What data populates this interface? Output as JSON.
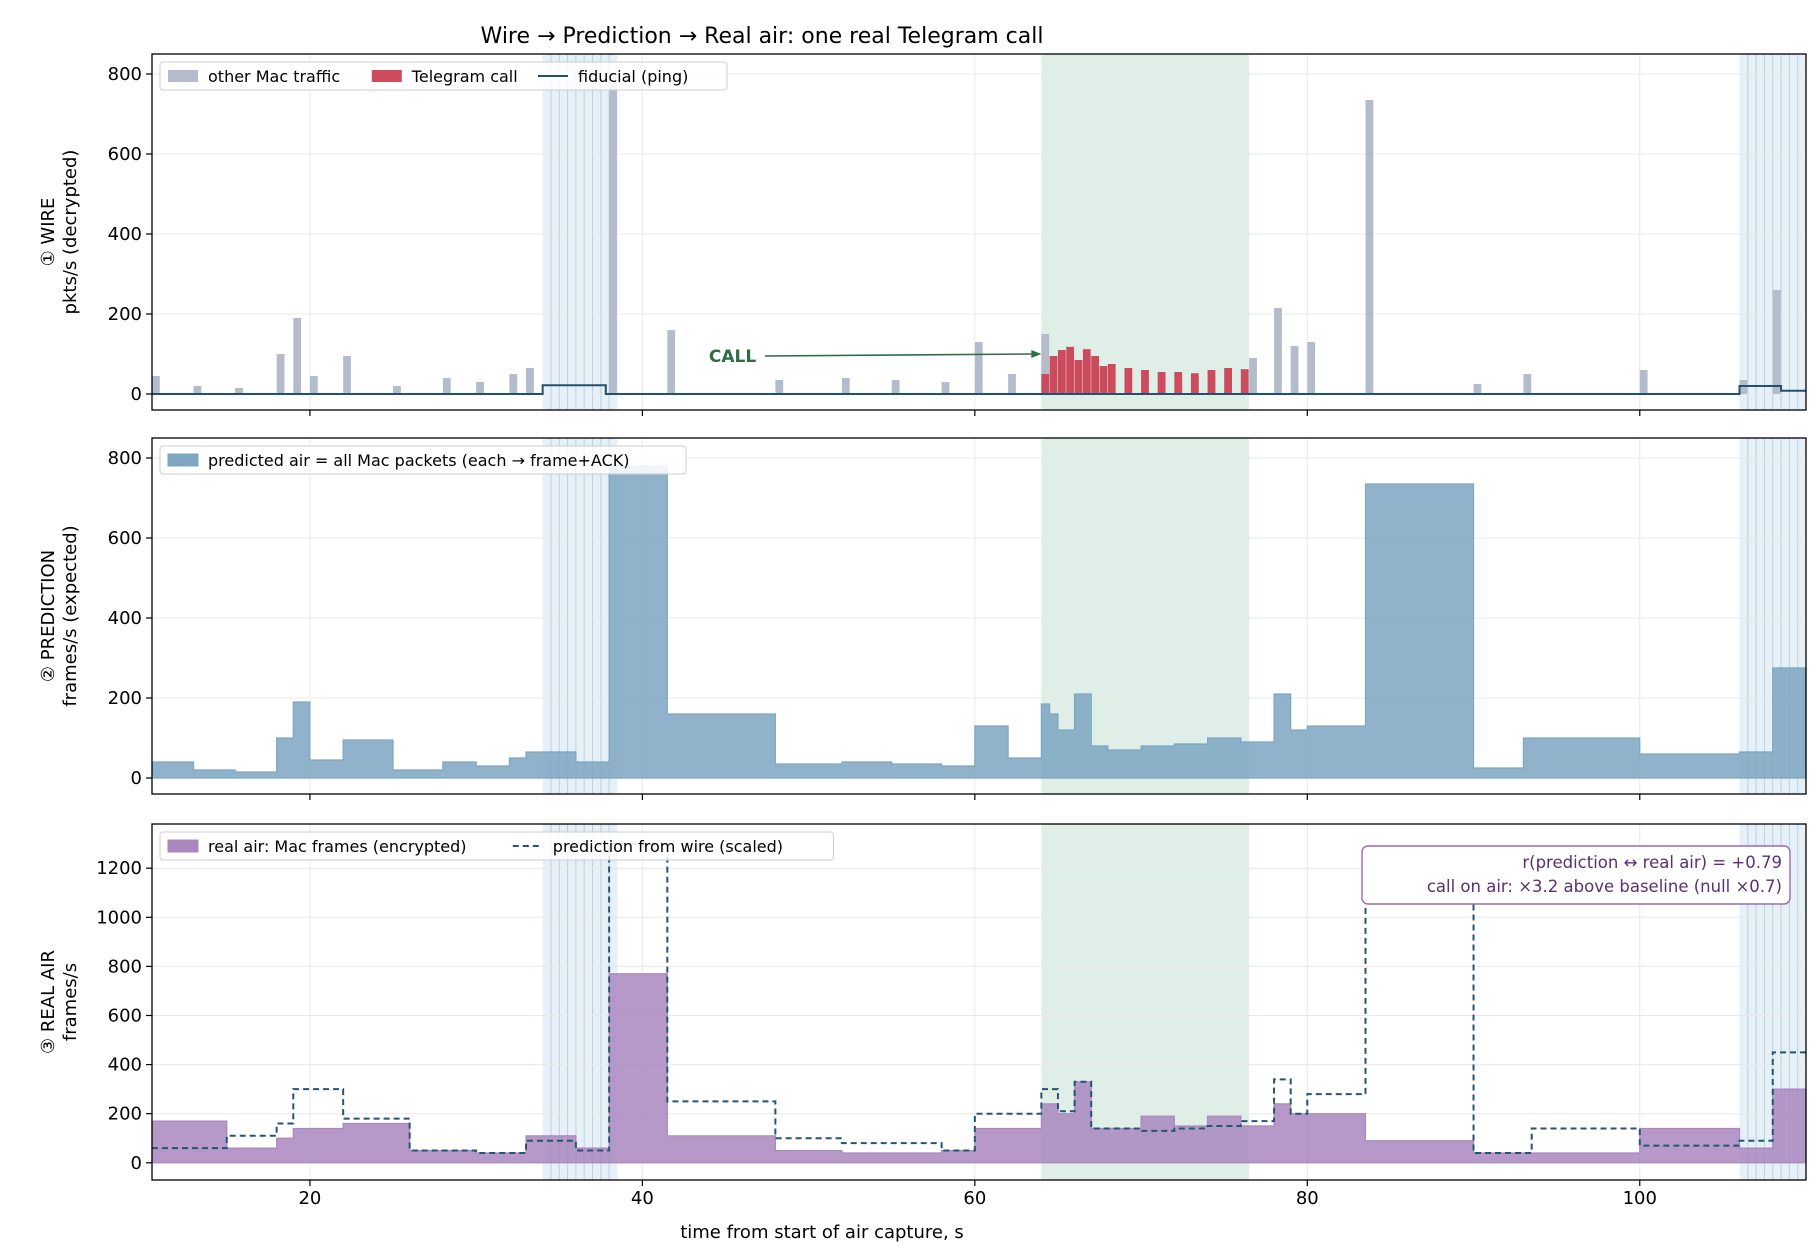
{
  "figure": {
    "title": "Wire → Prediction → Real air: one real Telegram call",
    "xlabel": "time from start of air capture, s"
  },
  "chart_data": [
    {
      "type": "bar",
      "panel": "wire",
      "ylabel_line1": "① WIRE",
      "ylabel_line2": "pkts/s (decrypted)",
      "xlim": [
        10.5,
        110.0
      ],
      "ylim": [
        -40,
        850
      ],
      "x_ticks": [
        20,
        40,
        60,
        80,
        100
      ],
      "y_ticks": [
        0,
        200,
        400,
        600,
        800
      ],
      "grid": true,
      "legend_position": "top-left",
      "bin_width_s": 0.5,
      "series": [
        {
          "name": "other Mac traffic",
          "kind": "bars",
          "color": "#b4bccb",
          "x": [
            10.5,
            13,
            15.5,
            18,
            19,
            20,
            22,
            25,
            28,
            30,
            32,
            33,
            38,
            41.5,
            48,
            52,
            55,
            58,
            60,
            62,
            64,
            76.5,
            78,
            79,
            80,
            83.5,
            90,
            93,
            100,
            106,
            108
          ],
          "values": [
            45,
            20,
            15,
            100,
            190,
            45,
            95,
            20,
            40,
            30,
            50,
            65,
            780,
            160,
            35,
            40,
            35,
            30,
            130,
            50,
            150,
            90,
            215,
            120,
            130,
            735,
            25,
            50,
            60,
            35,
            260
          ]
        },
        {
          "name": "Telegram call",
          "kind": "bars",
          "color": "#cc4c5e",
          "x": [
            64,
            64.5,
            65,
            65.5,
            66,
            66.5,
            67,
            67.5,
            68,
            69,
            70,
            71,
            72,
            73,
            74,
            75,
            76
          ],
          "values": [
            50,
            95,
            110,
            118,
            85,
            112,
            95,
            70,
            75,
            65,
            60,
            55,
            55,
            52,
            60,
            65,
            62
          ]
        },
        {
          "name": "fiducial (ping)",
          "kind": "step",
          "color": "#24506f",
          "x": [
            10.5,
            34,
            37.8,
            106,
            108.5,
            110
          ],
          "values": [
            0,
            22,
            0,
            20,
            8,
            8
          ]
        }
      ],
      "annotation": {
        "text": "CALL",
        "x": 44,
        "y": 95,
        "arrow_to": [
          64,
          100
        ]
      },
      "shaded_regions": [
        {
          "label": "call window",
          "x_start": 64,
          "x_end": 76.5,
          "color": "#dfeee6"
        },
        {
          "label": "fiducial",
          "x_start": 34,
          "x_end": 38.5,
          "color": "#e6f0f6"
        },
        {
          "label": "fiducial",
          "x_start": 106,
          "x_end": 110,
          "color": "#e6f0f6"
        }
      ]
    },
    {
      "type": "bar",
      "panel": "prediction",
      "ylabel_line1": "② PREDICTION",
      "ylabel_line2": "frames/s (expected)",
      "xlim": [
        10.5,
        110.0
      ],
      "ylim": [
        -40,
        850
      ],
      "x_ticks": [
        20,
        40,
        60,
        80,
        100
      ],
      "y_ticks": [
        0,
        200,
        400,
        600,
        800
      ],
      "grid": true,
      "legend_position": "top-left",
      "series": [
        {
          "name": "predicted air = all Mac packets (each → frame+ACK)",
          "kind": "step-filled",
          "color": "#7da6c2",
          "x": [
            10.5,
            13,
            15.5,
            18,
            19,
            20,
            22,
            25,
            28,
            30,
            32,
            33,
            36,
            38,
            41.5,
            48,
            52,
            55,
            58,
            60,
            62,
            64,
            64.5,
            65,
            66,
            67,
            68,
            70,
            72,
            74,
            76,
            78,
            79,
            80,
            83.5,
            90,
            93,
            100,
            106,
            108
          ],
          "values": [
            40,
            20,
            15,
            100,
            190,
            45,
            95,
            20,
            40,
            30,
            50,
            65,
            40,
            780,
            160,
            35,
            40,
            35,
            30,
            130,
            50,
            185,
            160,
            120,
            210,
            80,
            70,
            80,
            85,
            100,
            90,
            210,
            120,
            130,
            735,
            25,
            100,
            60,
            65,
            275
          ]
        }
      ],
      "shaded_regions": [
        {
          "label": "call window",
          "x_start": 64,
          "x_end": 76.5
        },
        {
          "label": "fiducial",
          "x_start": 34,
          "x_end": 38.5
        },
        {
          "label": "fiducial",
          "x_start": 106,
          "x_end": 110
        }
      ]
    },
    {
      "type": "bar",
      "panel": "real air",
      "ylabel_line1": "③ REAL AIR",
      "ylabel_line2": "frames/s",
      "xlim": [
        10.5,
        110.0
      ],
      "ylim": [
        -70,
        1380
      ],
      "x_ticks": [
        20,
        40,
        60,
        80,
        100
      ],
      "y_ticks": [
        0,
        200,
        400,
        600,
        800,
        1000,
        1200
      ],
      "grid": true,
      "legend_position": "top-left",
      "series": [
        {
          "name": "real air: Mac frames (encrypted)",
          "kind": "step-filled",
          "color": "#a987bf",
          "x": [
            10.5,
            15,
            18,
            19,
            22,
            26,
            30,
            33,
            36,
            38,
            41.5,
            48,
            52,
            58,
            60,
            64,
            65,
            66,
            67,
            70,
            72,
            74,
            76,
            78,
            79,
            80,
            83.5,
            90,
            100,
            106,
            108
          ],
          "values": [
            170,
            60,
            100,
            140,
            160,
            50,
            40,
            110,
            60,
            770,
            110,
            50,
            40,
            50,
            140,
            240,
            200,
            330,
            140,
            190,
            150,
            190,
            150,
            240,
            200,
            200,
            90,
            40,
            140,
            60,
            300
          ]
        },
        {
          "name": "prediction from wire (scaled)",
          "kind": "step-dashed",
          "color": "#255572",
          "x": [
            10.5,
            15,
            18,
            19,
            22,
            26,
            30,
            33,
            36,
            38,
            41.5,
            48,
            52,
            58,
            60,
            64,
            65,
            66,
            67,
            70,
            72,
            74,
            76,
            78,
            79,
            80,
            83.5,
            90,
            93.5,
            100,
            106,
            108
          ],
          "values": [
            60,
            110,
            160,
            300,
            180,
            50,
            40,
            90,
            50,
            1300,
            250,
            100,
            80,
            50,
            200,
            300,
            210,
            330,
            140,
            130,
            140,
            150,
            170,
            340,
            200,
            280,
            1200,
            40,
            140,
            70,
            90,
            450
          ]
        }
      ],
      "stats_box": {
        "line1": "r(prediction ↔ real air) = +0.79",
        "line2": "call on air: ×3.2 above baseline   (null ×0.7)"
      },
      "shaded_regions": [
        {
          "label": "call window",
          "x_start": 64,
          "x_end": 76.5
        },
        {
          "label": "fiducial",
          "x_start": 34,
          "x_end": 38.5
        },
        {
          "label": "fiducial",
          "x_start": 106,
          "x_end": 110
        }
      ]
    }
  ],
  "colors": {
    "call_window": "#dfeee6",
    "fiducial_window": "#e6f0f6",
    "fiducial_lines": "#b6d2e2",
    "grid": "#e8e8e8",
    "annotation": "#2f6b45",
    "stats_text": "#5a2f73",
    "stats_border": "#9a6cb4"
  }
}
